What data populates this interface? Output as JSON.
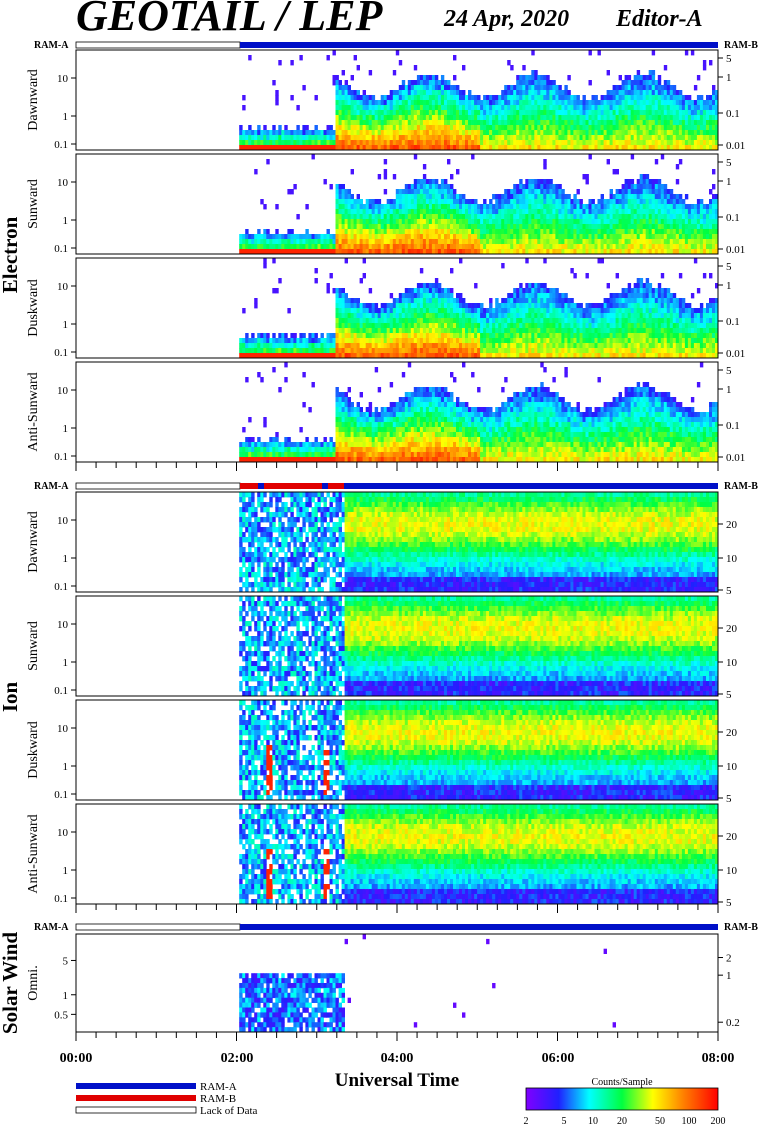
{
  "header": {
    "title": "GEOTAIL / LEP",
    "date": "24 Apr, 2020",
    "editor": "Editor-A"
  },
  "colors": {
    "ram_a": "#0010c8",
    "ram_b": "#e00000",
    "background": "#ffffff",
    "axis": "#000000"
  },
  "sections": {
    "electron": "Electron",
    "ion": "Ion",
    "solar_wind": "Solar Wind"
  },
  "mode_bar_labels": {
    "left": "RAM-A",
    "right": "RAM-B"
  },
  "xaxis": {
    "label": "Universal Time",
    "ticks": [
      "00:00",
      "02:00",
      "04:00",
      "06:00",
      "08:00"
    ]
  },
  "legend": {
    "ram_a": "RAM-A",
    "ram_b": "RAM-B",
    "lack": "Lack of Data"
  },
  "colorbar": {
    "title": "Counts/Sample",
    "ticks": [
      "2",
      "5",
      "10",
      "20",
      "50",
      "100",
      "200"
    ]
  },
  "chart_data": [
    {
      "type": "heatmap",
      "species": "Electron",
      "panel": "Dawnward",
      "x_range": [
        "00:00",
        "08:00"
      ],
      "data_start": "02:02",
      "left_ticks": [
        "0.1",
        "1",
        "10"
      ],
      "right_ticks": [
        "0.01",
        "0.1",
        "1",
        "5"
      ]
    },
    {
      "type": "heatmap",
      "species": "Electron",
      "panel": "Sunward",
      "x_range": [
        "00:00",
        "08:00"
      ],
      "data_start": "02:02",
      "left_ticks": [
        "0.1",
        "1",
        "10"
      ],
      "right_ticks": [
        "0.01",
        "0.1",
        "1",
        "5"
      ]
    },
    {
      "type": "heatmap",
      "species": "Electron",
      "panel": "Duskward",
      "x_range": [
        "00:00",
        "08:00"
      ],
      "data_start": "02:02",
      "left_ticks": [
        "0.1",
        "1",
        "10"
      ],
      "right_ticks": [
        "0.01",
        "0.1",
        "1",
        "5"
      ]
    },
    {
      "type": "heatmap",
      "species": "Electron",
      "panel": "Anti-Sunward",
      "x_range": [
        "00:00",
        "08:00"
      ],
      "data_start": "02:02",
      "left_ticks": [
        "0.1",
        "1",
        "10"
      ],
      "right_ticks": [
        "0.01",
        "0.1",
        "1",
        "5"
      ]
    },
    {
      "type": "heatmap",
      "species": "Ion",
      "panel": "Dawnward",
      "x_range": [
        "00:00",
        "08:00"
      ],
      "data_start": "02:02",
      "left_ticks": [
        "0.1",
        "1",
        "10"
      ],
      "right_ticks": [
        "5",
        "10",
        "20"
      ]
    },
    {
      "type": "heatmap",
      "species": "Ion",
      "panel": "Sunward",
      "x_range": [
        "00:00",
        "08:00"
      ],
      "data_start": "02:02",
      "left_ticks": [
        "0.1",
        "1",
        "10"
      ],
      "right_ticks": [
        "5",
        "10",
        "20"
      ]
    },
    {
      "type": "heatmap",
      "species": "Ion",
      "panel": "Duskward",
      "x_range": [
        "00:00",
        "08:00"
      ],
      "data_start": "02:02",
      "left_ticks": [
        "0.1",
        "1",
        "10"
      ],
      "right_ticks": [
        "5",
        "10",
        "20"
      ]
    },
    {
      "type": "heatmap",
      "species": "Ion",
      "panel": "Anti-Sunward",
      "x_range": [
        "00:00",
        "08:00"
      ],
      "data_start": "02:02",
      "left_ticks": [
        "0.1",
        "1",
        "10"
      ],
      "right_ticks": [
        "5",
        "10",
        "20"
      ]
    },
    {
      "type": "heatmap",
      "species": "Solar Wind",
      "panel": "Omni.",
      "x_range": [
        "00:00",
        "08:00"
      ],
      "data_start": "02:02",
      "left_ticks": [
        "0.5",
        "1",
        "5"
      ],
      "right_ticks": [
        "0.2",
        "1",
        "2"
      ]
    }
  ]
}
